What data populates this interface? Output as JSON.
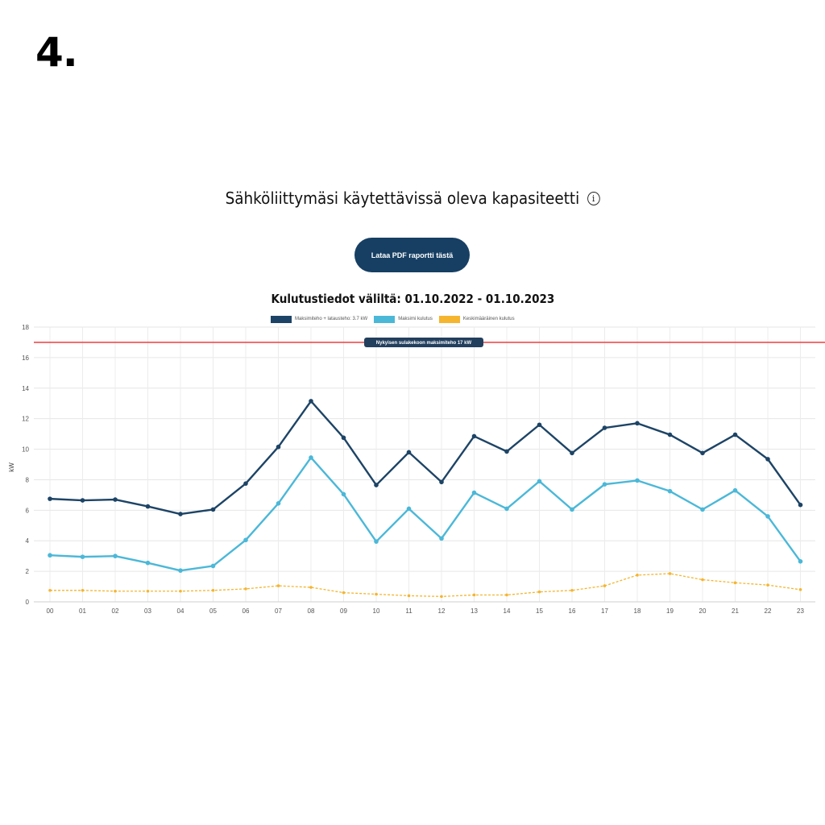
{
  "header": {
    "step_number": "4.",
    "title": "Sähköliittymäsi käytettävissä oleva kapasiteetti",
    "info_icon": "info-icon",
    "pdf_button_label": "Lataa PDF raportti tästä"
  },
  "colors": {
    "series_max_plus_charge": "#1d4466",
    "series_max": "#4bb8d8",
    "series_avg": "#f5b52e",
    "limit_line": "#ef4b4b",
    "limit_label_bg": "#223f5e"
  },
  "chart_data": {
    "type": "line",
    "title": "Kulutustiedot väliltä: 01.10.2022 - 01.10.2023",
    "xlabel": "",
    "ylabel": "kW",
    "ylim": [
      0,
      18
    ],
    "yticks": [
      "0",
      "2",
      "4",
      "6",
      "8",
      "10",
      "12",
      "14",
      "16",
      "18"
    ],
    "grid": true,
    "legend_position": "top",
    "categories": [
      "00",
      "01",
      "02",
      "03",
      "04",
      "05",
      "06",
      "07",
      "08",
      "09",
      "10",
      "11",
      "12",
      "13",
      "14",
      "15",
      "16",
      "17",
      "18",
      "19",
      "20",
      "21",
      "22",
      "23"
    ],
    "series": [
      {
        "name": "Maksimiteho + latausteho: 3.7 kW",
        "style": "solid",
        "values": [
          6.75,
          6.65,
          6.7,
          6.25,
          5.75,
          6.05,
          7.75,
          10.15,
          13.15,
          10.75,
          7.65,
          9.8,
          7.85,
          10.85,
          9.85,
          11.6,
          9.75,
          11.4,
          11.7,
          10.95,
          9.75,
          10.95,
          9.35,
          6.35
        ]
      },
      {
        "name": "Maksimi kulutus",
        "style": "solid",
        "values": [
          3.05,
          2.95,
          3.0,
          2.55,
          2.05,
          2.35,
          4.05,
          6.45,
          9.45,
          7.05,
          3.95,
          6.1,
          4.15,
          7.15,
          6.1,
          7.9,
          6.05,
          7.7,
          7.95,
          7.25,
          6.05,
          7.3,
          5.6,
          2.65
        ]
      },
      {
        "name": "Keskimääräinen kulutus",
        "style": "dashed",
        "values": [
          0.75,
          0.75,
          0.7,
          0.7,
          0.7,
          0.75,
          0.85,
          1.05,
          0.95,
          0.6,
          0.5,
          0.4,
          0.35,
          0.45,
          0.45,
          0.65,
          0.75,
          1.05,
          1.75,
          1.85,
          1.45,
          1.25,
          1.1,
          0.8
        ]
      }
    ],
    "limit_line": {
      "value": 17,
      "label": "Nykyisen sulakekoon maksimiteho 17 kW"
    }
  }
}
